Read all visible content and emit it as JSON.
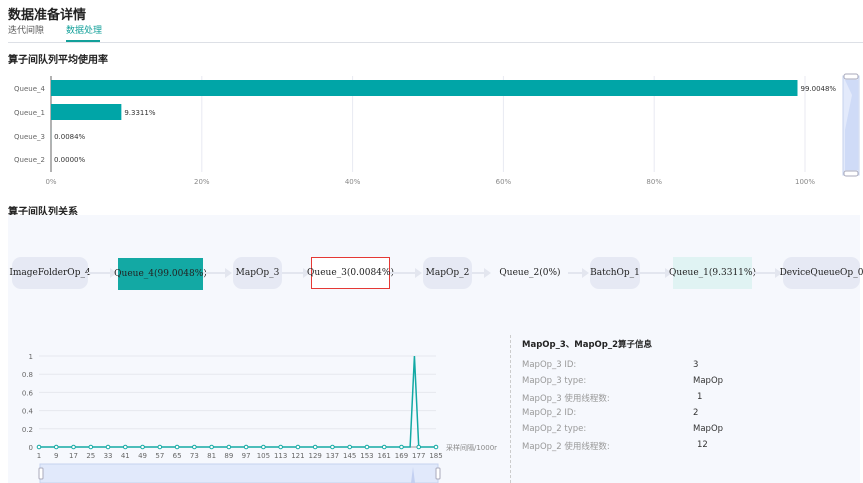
{
  "page": {
    "title": "数据准备详情",
    "tabs": [
      {
        "label": "迭代间隙",
        "active": false
      },
      {
        "label": "数据处理",
        "active": true
      }
    ]
  },
  "colors": {
    "accent": "#13a09a",
    "bar": "#00a5a7",
    "highlight_border": "#e53935",
    "queue_light": "#e0f3f3",
    "op_bg": "#e6e9f4"
  },
  "queue_usage": {
    "section_title": "算子间队列平均使用率",
    "chart_data": {
      "type": "bar",
      "orientation": "horizontal",
      "categories": [
        "Queue_4",
        "Queue_1",
        "Queue_3",
        "Queue_2"
      ],
      "values": [
        99.0048,
        9.3311,
        0.0084,
        0.0
      ],
      "data_labels": [
        "99.0048%",
        "9.3311%",
        "0.0084%",
        "0.0000%"
      ],
      "xlim": [
        0,
        100
      ],
      "x_ticks": [
        "0%",
        "20%",
        "40%",
        "60%",
        "80%",
        "100%"
      ],
      "grid": true
    }
  },
  "queue_relation": {
    "section_title": "算子间队列关系",
    "nodes": [
      {
        "label": "ImageFolderOp_4",
        "kind": "op"
      },
      {
        "label": "Queue_4(99.0048%)",
        "kind": "queue-high"
      },
      {
        "label": "MapOp_3",
        "kind": "op"
      },
      {
        "label": "Queue_3(0.0084%)",
        "kind": "queue-selected"
      },
      {
        "label": "MapOp_2",
        "kind": "op"
      },
      {
        "label": "Queue_2(0%)",
        "kind": "queue"
      },
      {
        "label": "BatchOp_1",
        "kind": "op"
      },
      {
        "label": "Queue_1(9.3311%)",
        "kind": "queue-mid"
      },
      {
        "label": "DeviceQueueOp_0",
        "kind": "op"
      }
    ]
  },
  "queue_trend": {
    "chart_data": {
      "type": "line",
      "xlabel": "采样间隔/1000r",
      "x_ticks": [
        "1",
        "9",
        "17",
        "25",
        "33",
        "41",
        "49",
        "57",
        "65",
        "73",
        "81",
        "89",
        "97",
        "105",
        "113",
        "121",
        "129",
        "137",
        "145",
        "153",
        "161",
        "169",
        "177",
        "185"
      ],
      "y_ticks": [
        "0",
        "0.2",
        "0.4",
        "0.6",
        "0.8",
        "1"
      ],
      "ylim": [
        0,
        1
      ],
      "xlim": [
        1,
        185
      ],
      "series": [
        {
          "x": [
            1,
            9,
            17,
            25,
            33,
            41,
            49,
            57,
            65,
            73,
            81,
            89,
            97,
            105,
            113,
            121,
            129,
            137,
            145,
            153,
            161,
            169,
            173,
            175,
            177,
            185
          ],
          "y": [
            0,
            0,
            0,
            0,
            0,
            0,
            0,
            0,
            0,
            0,
            0,
            0,
            0,
            0,
            0,
            0,
            0,
            0,
            0,
            0,
            0,
            0,
            0,
            1,
            0,
            0
          ]
        }
      ],
      "grid": true,
      "data_zoom": [
        0,
        100
      ]
    }
  },
  "op_info": {
    "title": "MapOp_3、MapOp_2算子信息",
    "rows": [
      {
        "label": "MapOp_3 ID:",
        "value": "3"
      },
      {
        "label": "MapOp_3 type:",
        "value": "MapOp"
      },
      {
        "label": "MapOp_3 使用线程数:",
        "value": "1"
      },
      {
        "label": "MapOp_2 ID:",
        "value": "2"
      },
      {
        "label": "MapOp_2 type:",
        "value": "MapOp"
      },
      {
        "label": "MapOp_2 使用线程数:",
        "value": "12"
      }
    ]
  }
}
